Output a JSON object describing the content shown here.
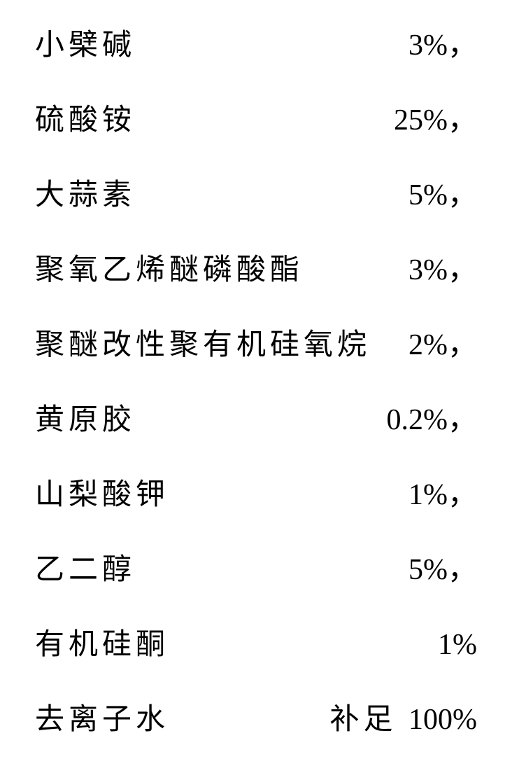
{
  "rows": [
    {
      "label": "小檗碱",
      "value": "3%",
      "suffix": "，"
    },
    {
      "label": "硫酸铵",
      "value": "25%",
      "suffix": "，"
    },
    {
      "label": "大蒜素",
      "value": "5%",
      "suffix": "，"
    },
    {
      "label": "聚氧乙烯醚磷酸酯",
      "value": "3%",
      "suffix": "，"
    },
    {
      "label": "聚醚改性聚有机硅氧烷",
      "value": "2%",
      "suffix": "，"
    },
    {
      "label": "黄原胶",
      "value": "0.2%",
      "suffix": "，"
    },
    {
      "label": "山梨酸钾",
      "value": "1%",
      "suffix": "，"
    },
    {
      "label": "乙二醇",
      "value": "5%",
      "suffix": "，"
    },
    {
      "label": "有机硅酮",
      "value": "1%",
      "suffix": ""
    },
    {
      "label": "去离子水",
      "prefix": "补足 ",
      "value": "100%",
      "suffix": ""
    }
  ]
}
